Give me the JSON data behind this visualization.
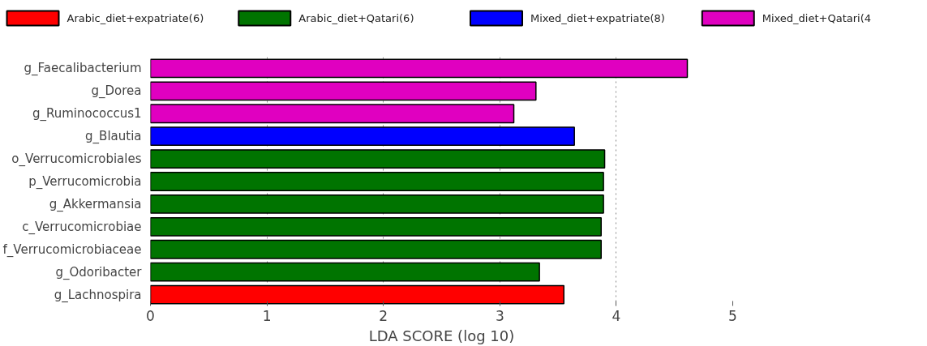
{
  "chart_data": {
    "type": "bar",
    "orientation": "horizontal",
    "xlabel": "LDA SCORE (log 10)",
    "categories": [
      "g_Faecalibacterium",
      "g_Dorea",
      "g_Ruminococcus1",
      "g_Blautia",
      "o_Verrucomicrobiales",
      "p_Verrucomicrobia",
      "g_Akkermansia",
      "c_Verrucomicrobiae",
      "f_Verrucomicrobiaceae",
      "g_Odoribacter",
      "g_Lachnospira"
    ],
    "series": [
      {
        "name": "Arabic_diet+expatriate(6)",
        "color": "#ff0000",
        "values": [
          null,
          null,
          null,
          null,
          null,
          null,
          null,
          null,
          null,
          null,
          3.55
        ]
      },
      {
        "name": "Arabic_diet+Qatari(6)",
        "color": "#007400",
        "values": [
          null,
          null,
          null,
          null,
          3.9,
          3.89,
          3.89,
          3.87,
          3.87,
          3.34,
          null
        ]
      },
      {
        "name": "Mixed_diet+expatriate(8)",
        "color": "#0000ff",
        "values": [
          null,
          null,
          null,
          3.64,
          null,
          null,
          null,
          null,
          null,
          null,
          null
        ]
      },
      {
        "name": "Mixed_diet+Qatari(4",
        "color": "#e000c0",
        "values": [
          4.61,
          3.31,
          3.12,
          null,
          null,
          null,
          null,
          null,
          null,
          null,
          null
        ]
      }
    ],
    "xlim": [
      0,
      5
    ],
    "xticks": [
      0,
      1,
      2,
      3,
      4,
      5
    ],
    "grid": "x",
    "legend": "top"
  }
}
